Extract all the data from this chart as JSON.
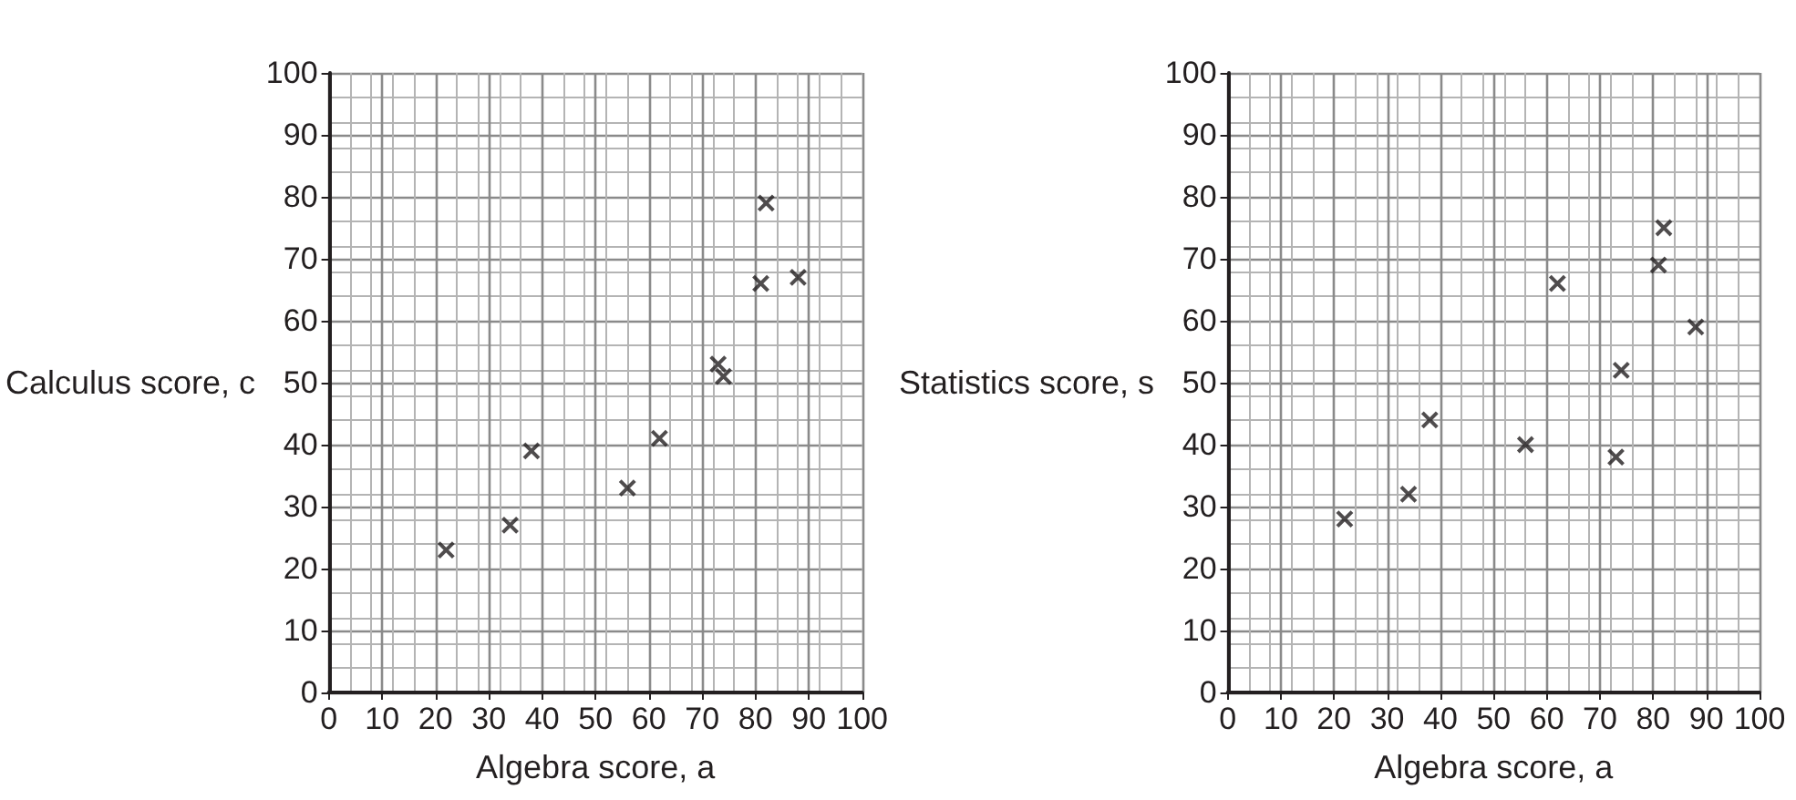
{
  "chart_data": [
    {
      "type": "scatter",
      "xlabel": "Algebra score, a",
      "ylabel": "Calculus score, c",
      "x": [
        22,
        34,
        38,
        56,
        62,
        73,
        74,
        81,
        82,
        88
      ],
      "values": [
        23,
        27,
        39,
        33,
        41,
        53,
        51,
        66,
        79,
        67
      ],
      "color": "#231f20",
      "marker": "cross",
      "xlim": [
        0,
        100
      ],
      "xticks": [
        0,
        10,
        20,
        30,
        40,
        50,
        60,
        70,
        80,
        90,
        100
      ],
      "ylim": [
        0,
        100
      ],
      "yticks": [
        0,
        10,
        20,
        30,
        40,
        50,
        60,
        70,
        80,
        90,
        100
      ],
      "grid": true
    },
    {
      "type": "scatter",
      "xlabel": "Algebra score, a",
      "ylabel": "Statistics score, s",
      "x": [
        22,
        34,
        38,
        56,
        62,
        73,
        74,
        81,
        82,
        88
      ],
      "values": [
        28,
        32,
        44,
        40,
        66,
        38,
        52,
        69,
        75,
        59
      ],
      "color": "#231f20",
      "marker": "cross",
      "xlim": [
        0,
        100
      ],
      "xticks": [
        0,
        10,
        20,
        30,
        40,
        50,
        60,
        70,
        80,
        90,
        100
      ],
      "ylim": [
        0,
        100
      ],
      "yticks": [
        0,
        10,
        20,
        30,
        40,
        50,
        60,
        70,
        80,
        90,
        100
      ],
      "grid": true
    }
  ]
}
